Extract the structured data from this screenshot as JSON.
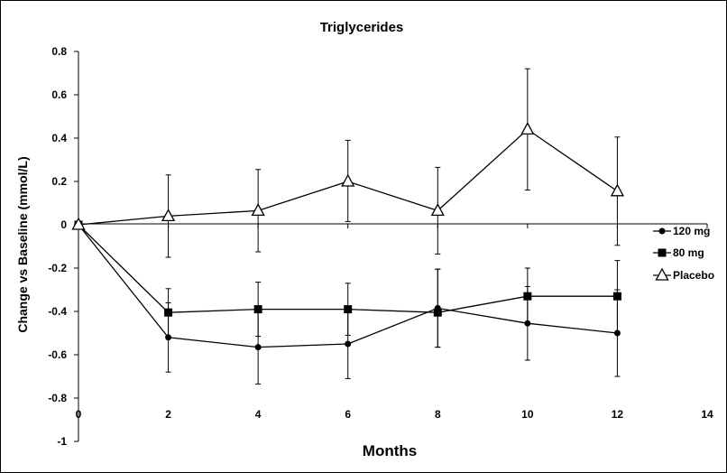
{
  "chart_data": {
    "type": "line",
    "title": "Triglycerides",
    "xlabel": "Months",
    "ylabel": "Change vs Baseline (mmol/L)",
    "xlim": [
      0,
      14
    ],
    "ylim": [
      -1,
      0.8
    ],
    "xticks": [
      0,
      2,
      4,
      6,
      8,
      10,
      12,
      14
    ],
    "yticks": [
      0.8,
      0.6,
      0.4,
      0.2,
      0,
      -0.2,
      -0.4,
      -0.6,
      -0.8,
      -1
    ],
    "grid": false,
    "legend_position": "right",
    "series": [
      {
        "name": "120 mg",
        "marker": "circle",
        "x": [
          0,
          2,
          4,
          6,
          8,
          10,
          12
        ],
        "y": [
          0,
          -0.52,
          -0.565,
          -0.55,
          -0.385,
          -0.455,
          -0.5
        ],
        "err_low": [
          0,
          0.16,
          0.17,
          0.16,
          0.18,
          0.17,
          0.2
        ],
        "err_high": [
          0,
          0.16,
          0.17,
          0.16,
          0.18,
          0.17,
          0.2
        ]
      },
      {
        "name": "80 mg",
        "marker": "square",
        "x": [
          0,
          2,
          4,
          6,
          8,
          10,
          12
        ],
        "y": [
          0,
          -0.405,
          -0.39,
          -0.39,
          -0.405,
          -0.33,
          -0.33
        ],
        "err_low": [
          0,
          0.11,
          0.125,
          0.12,
          0.16,
          0.13,
          0.165
        ],
        "err_high": [
          0,
          0.11,
          0.125,
          0.12,
          0.2,
          0.13,
          0.165
        ]
      },
      {
        "name": "Placebo",
        "marker": "triangle",
        "x": [
          0,
          2,
          4,
          6,
          8,
          10,
          12
        ],
        "y": [
          0,
          0.04,
          0.065,
          0.2,
          0.065,
          0.44,
          0.155
        ],
        "err_low": [
          0,
          0.19,
          0.19,
          0.185,
          0.2,
          0.28,
          0.25
        ],
        "err_high": [
          0,
          0.19,
          0.19,
          0.19,
          0.2,
          0.28,
          0.25
        ]
      }
    ]
  }
}
